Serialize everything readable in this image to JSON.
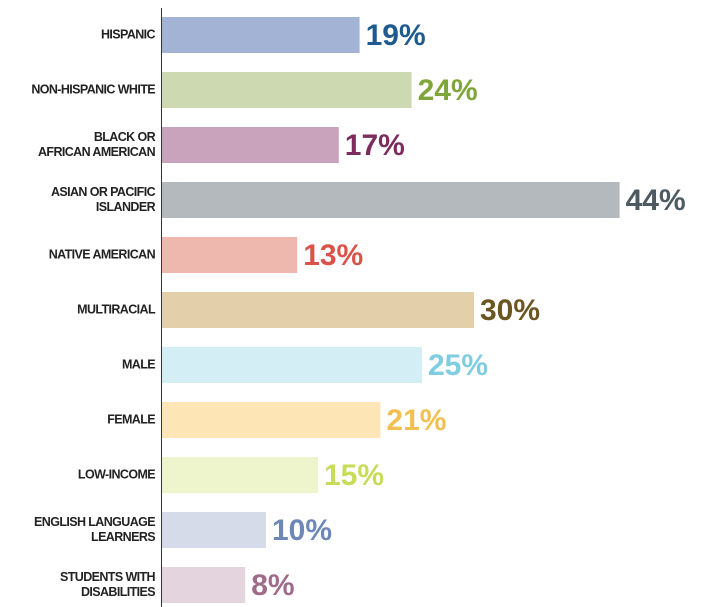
{
  "chart_data": {
    "type": "bar",
    "orientation": "horizontal",
    "categories": [
      "HISPANIC",
      "NON-HISPANIC WHITE",
      "BLACK OR\nAFRICAN AMERICAN",
      "ASIAN OR PACIFIC\nISLANDER",
      "NATIVE AMERICAN",
      "MULTIRACIAL",
      "MALE",
      "FEMALE",
      "LOW-INCOME",
      "ENGLISH LANGUAGE\nLEARNERS",
      "STUDENTS WITH\nDISABILITIES"
    ],
    "values": [
      19,
      24,
      17,
      44,
      13,
      30,
      25,
      21,
      15,
      10,
      8
    ],
    "value_labels": [
      "19%",
      "24%",
      "17%",
      "44%",
      "13%",
      "30%",
      "25%",
      "21%",
      "15%",
      "10%",
      "8%"
    ],
    "colors": [
      "#a3b3d6",
      "#cdd9b0",
      "#c9a3bb",
      "#b3b9bd",
      "#efb8ae",
      "#e3d0ab",
      "#d3eef4",
      "#fde5b6",
      "#eef5cc",
      "#d6dbea",
      "#e4d4dd"
    ],
    "label_colors": [
      "#1f5b8e",
      "#7fa63a",
      "#7b2e5e",
      "#4d5a62",
      "#d9534a",
      "#6b5520",
      "#7fcde0",
      "#f2c050",
      "#c8dc5a",
      "#6d87b8",
      "#a06b8b"
    ],
    "xlim": [
      0,
      50
    ]
  }
}
